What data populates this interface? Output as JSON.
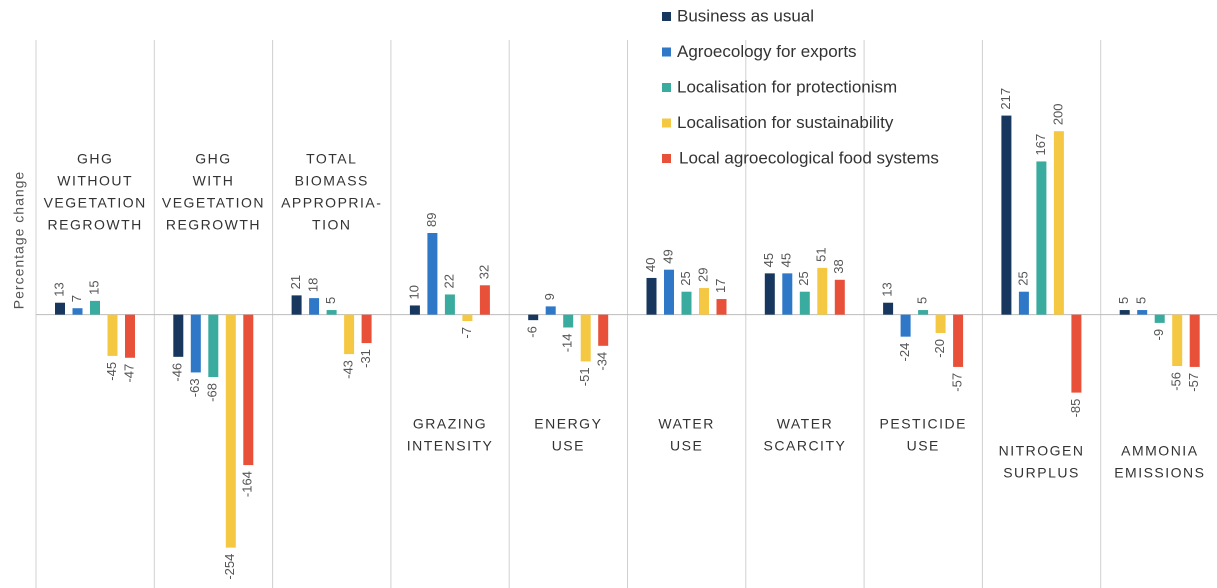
{
  "chart_data": {
    "type": "bar",
    "y_label": "Percentage change",
    "categories": [
      [
        "GHG",
        "WITHOUT",
        "VEGETATION",
        "REGROWTH"
      ],
      [
        "GHG",
        "WITH",
        "VEGETATION",
        "REGROWTH"
      ],
      [
        "TOTAL",
        "BIOMASS",
        "APPROPRIA-",
        "TION"
      ],
      [
        "GRAZING",
        "INTENSITY"
      ],
      [
        "ENERGY",
        "USE"
      ],
      [
        "WATER",
        "USE"
      ],
      [
        "WATER",
        "SCARCITY"
      ],
      [
        "PESTICIDE",
        "USE"
      ],
      [
        "NITROGEN",
        "SURPLUS"
      ],
      [
        "AMMONIA",
        "EMISSIONS"
      ]
    ],
    "series": [
      {
        "name": "Business as usual",
        "color": "#17375e",
        "values": [
          13,
          -46,
          21,
          10,
          -6,
          40,
          45,
          13,
          217,
          5
        ]
      },
      {
        "name": "Agroecology for exports",
        "color": "#2e78c7",
        "values": [
          7,
          -63,
          18,
          89,
          9,
          49,
          45,
          -24,
          25,
          5
        ]
      },
      {
        "name": "Localisation for protectionism",
        "color": "#3aab9f",
        "values": [
          15,
          -68,
          5,
          22,
          -14,
          25,
          25,
          5,
          167,
          -9
        ]
      },
      {
        "name": "Localisation for sustainability",
        "color": "#f5c843",
        "values": [
          -45,
          -254,
          -43,
          -7,
          -51,
          29,
          51,
          -20,
          200,
          -56
        ]
      },
      {
        "name": "Local agroecological food systems",
        "color": "#e8503a",
        "values": [
          -47,
          -164,
          -31,
          32,
          -34,
          17,
          38,
          -57,
          -85,
          -57
        ]
      }
    ],
    "ylim": [
      -298,
      343
    ]
  }
}
